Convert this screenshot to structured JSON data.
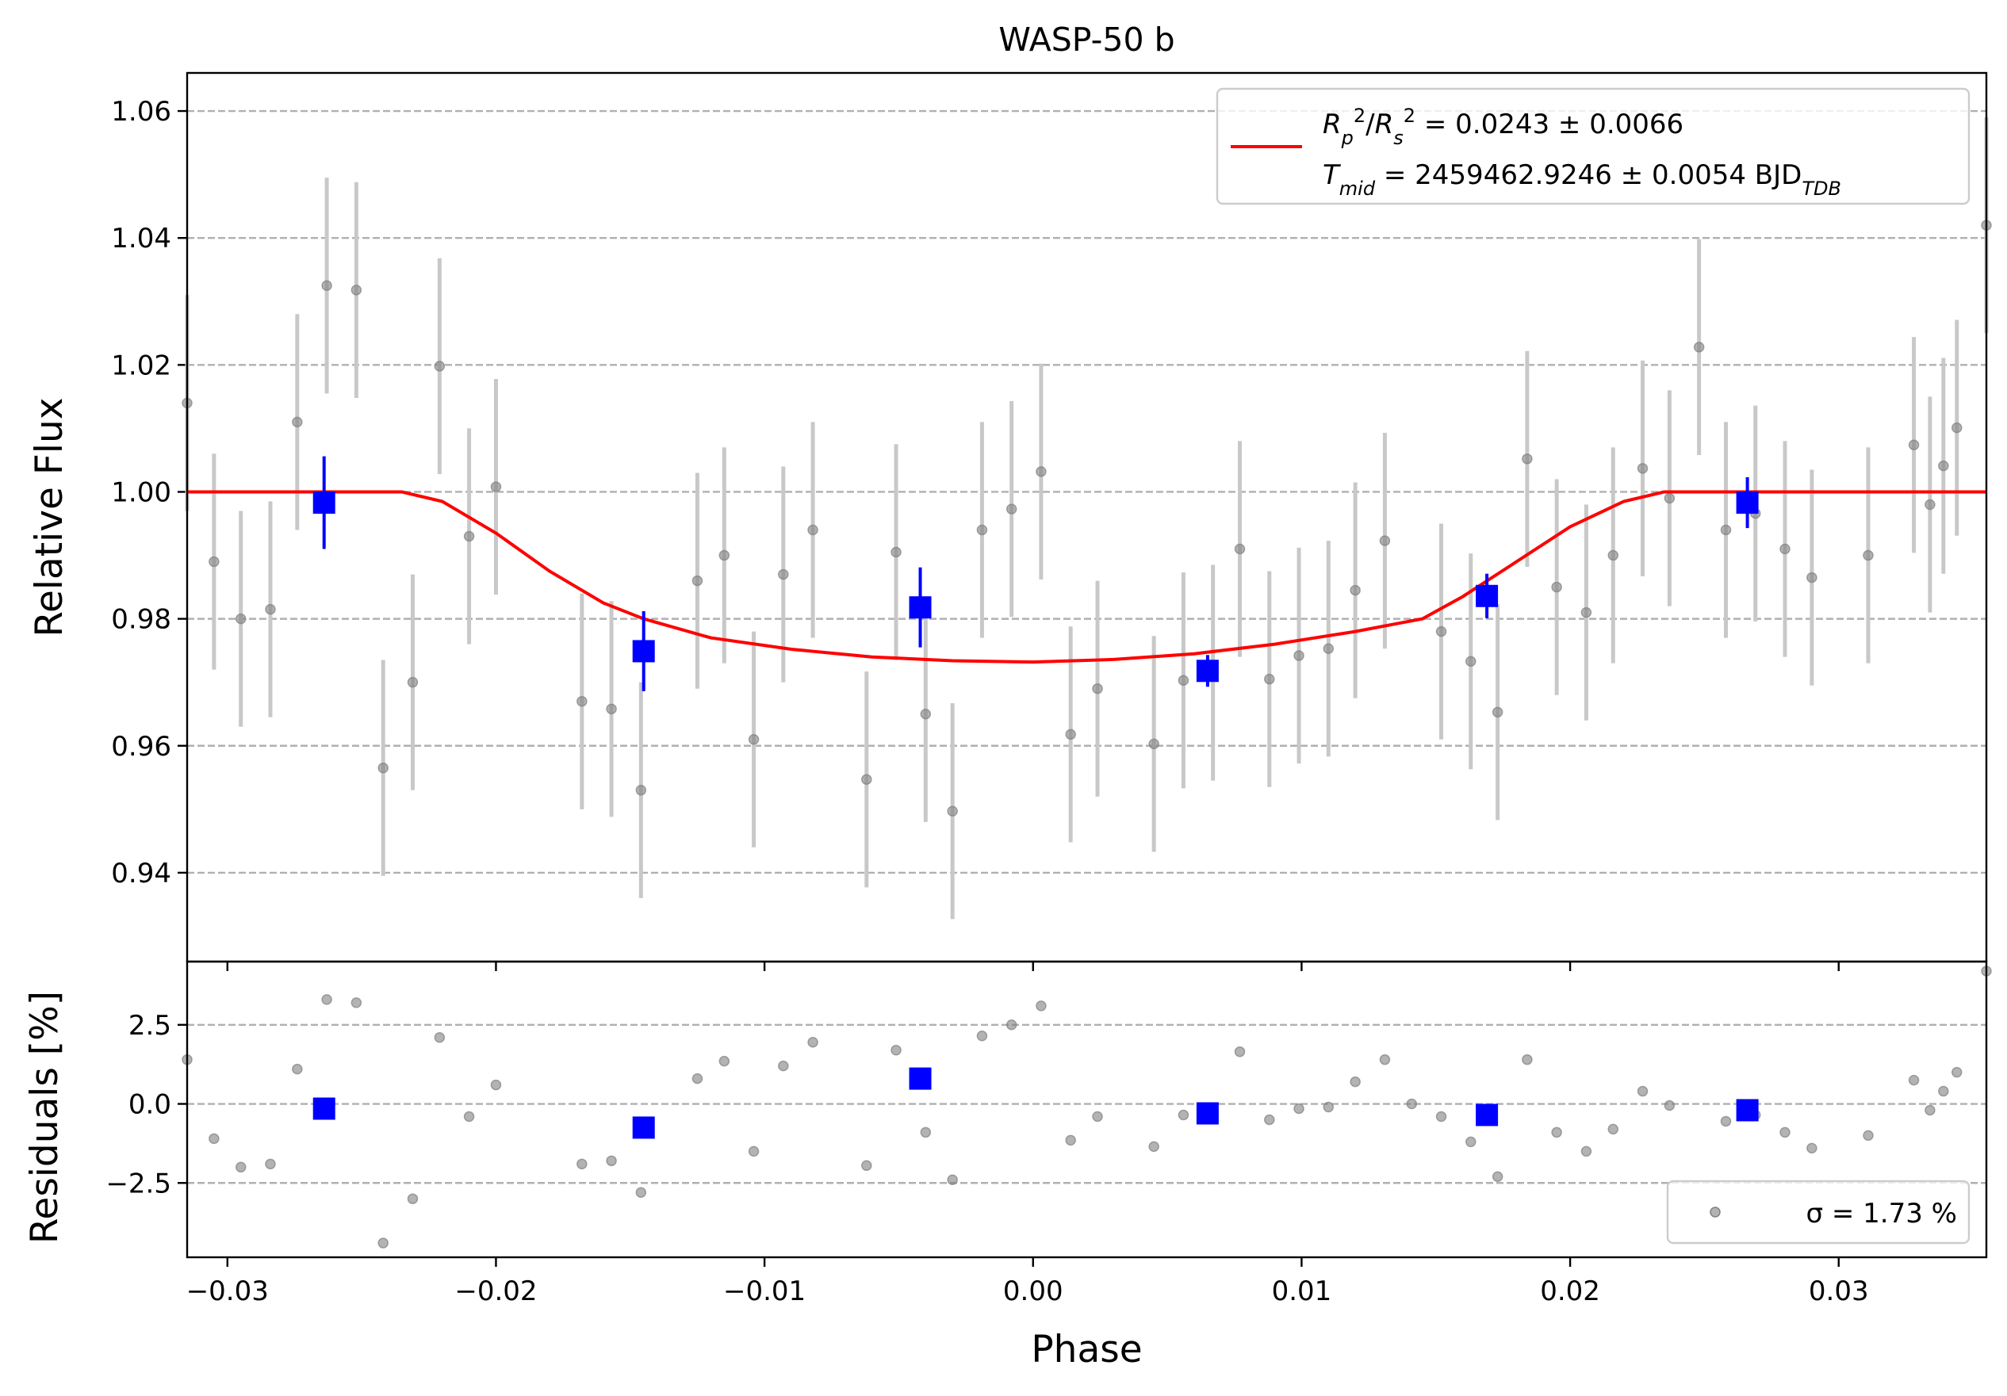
{
  "chart_data": [
    {
      "type": "scatter",
      "panel": "main",
      "title": "WASP-50 b",
      "xlabel": "",
      "ylabel": "Relative Flux",
      "xlim": [
        -0.0315,
        0.0355
      ],
      "ylim": [
        0.926,
        1.066
      ],
      "yticks": [
        0.94,
        0.96,
        0.98,
        1.0,
        1.02,
        1.04,
        1.06
      ],
      "ytick_labels": [
        "0.94",
        "0.96",
        "0.98",
        "1.00",
        "1.02",
        "1.04",
        "1.06"
      ],
      "grid": "horizontal dashed",
      "legend_position": "top-right",
      "legend": {
        "line_text_1": "R_p^2/R_s^2 = 0.0243 ± 0.0066",
        "line_text_2": "T_mid = 2459462.9246 ± 0.0054 BJD_TDB"
      },
      "colors": {
        "raw": "#808080",
        "binned": "#0000ff",
        "model": "#ff0000",
        "raw_errorbar": "#c8c8c8"
      },
      "series": [
        {
          "kind": "raw",
          "x": [
            -0.0315,
            -0.0305,
            -0.0295,
            -0.0284,
            -0.0274,
            -0.0263,
            -0.0252,
            -0.0242,
            -0.0231,
            -0.0221,
            -0.021,
            -0.02,
            -0.0168,
            -0.0157,
            -0.0146,
            -0.0125,
            -0.0115,
            -0.0104,
            -0.0093,
            -0.0082,
            -0.0062,
            -0.0051,
            -0.004,
            -0.003,
            -0.0019,
            -0.0008,
            0.0003,
            0.0014,
            0.0024,
            0.0045,
            0.0056,
            0.0067,
            0.0077,
            0.0088,
            0.0099,
            0.011,
            0.012,
            0.0131,
            0.0152,
            0.0163,
            0.0173,
            0.0184,
            0.0195,
            0.0206,
            0.0216,
            0.0227,
            0.0237,
            0.0248,
            0.0258,
            0.0269,
            0.028,
            0.029,
            0.0311,
            0.0328,
            0.0334,
            0.0339,
            0.0344,
            0.0355
          ],
          "y": [
            1.014,
            0.989,
            0.98,
            0.9815,
            1.011,
            1.0325,
            1.0318,
            0.9565,
            0.97,
            1.0198,
            0.993,
            1.0008,
            0.967,
            0.9658,
            0.953,
            0.986,
            0.99,
            0.961,
            0.987,
            0.994,
            0.9547,
            0.9905,
            0.965,
            0.9497,
            0.994,
            0.9973,
            1.0032,
            0.9618,
            0.969,
            0.9603,
            0.9703,
            0.9715,
            0.991,
            0.9705,
            0.9742,
            0.9753,
            0.9845,
            0.9923,
            0.978,
            0.9733,
            0.9653,
            1.0052,
            0.985,
            0.981,
            0.99,
            1.0037,
            0.999,
            1.0228,
            0.994,
            0.9966,
            0.991,
            0.9865,
            0.99,
            1.0074,
            0.998,
            1.0041,
            1.0101,
            1.042
          ],
          "yerr": 0.017
        },
        {
          "kind": "binned",
          "x": [
            -0.0264,
            -0.0145,
            -0.0042,
            0.0065,
            0.0169,
            0.0266
          ],
          "y": [
            0.9983,
            0.9749,
            0.9818,
            0.9718,
            0.9836,
            0.9983
          ],
          "yerr": [
            0.0073,
            0.0063,
            0.0063,
            0.0025,
            0.0035,
            0.004
          ]
        },
        {
          "kind": "model",
          "x": [
            -0.0315,
            -0.0235,
            -0.022,
            -0.02,
            -0.018,
            -0.016,
            -0.0145,
            -0.012,
            -0.009,
            -0.006,
            -0.003,
            0.0,
            0.003,
            0.006,
            0.009,
            0.012,
            0.0145,
            0.016,
            0.018,
            0.02,
            0.022,
            0.0235,
            0.0355
          ],
          "y": [
            1.0,
            1.0,
            0.9985,
            0.9935,
            0.9875,
            0.9825,
            0.98,
            0.977,
            0.9752,
            0.974,
            0.9734,
            0.9732,
            0.9736,
            0.9745,
            0.976,
            0.978,
            0.98,
            0.9835,
            0.989,
            0.9945,
            0.9985,
            1.0,
            1.0
          ]
        }
      ]
    },
    {
      "type": "scatter",
      "panel": "residuals",
      "xlabel": "Phase",
      "ylabel": "Residuals [%]",
      "xlim": [
        -0.0315,
        0.0355
      ],
      "ylim": [
        -4.85,
        4.5
      ],
      "xticks": [
        -0.03,
        -0.02,
        -0.01,
        0.0,
        0.01,
        0.02,
        0.03
      ],
      "xtick_labels": [
        "−0.03",
        "−0.02",
        "−0.01",
        "0.00",
        "0.01",
        "0.02",
        "0.03"
      ],
      "yticks": [
        -2.5,
        0.0,
        2.5
      ],
      "ytick_labels": [
        "−2.5",
        "0.0",
        "2.5"
      ],
      "grid": "horizontal dashed",
      "legend_position": "bottom-right",
      "legend": {
        "text": "σ = 1.73 %"
      },
      "series": [
        {
          "kind": "raw",
          "x": [
            -0.0315,
            -0.0305,
            -0.0295,
            -0.0284,
            -0.0274,
            -0.0263,
            -0.0252,
            -0.0242,
            -0.0231,
            -0.0221,
            -0.021,
            -0.02,
            -0.0168,
            -0.0157,
            -0.0146,
            -0.0125,
            -0.0115,
            -0.0104,
            -0.0093,
            -0.0082,
            -0.0062,
            -0.0051,
            -0.004,
            -0.003,
            -0.0019,
            -0.0008,
            0.0003,
            0.0014,
            0.0024,
            0.0045,
            0.0056,
            0.0067,
            0.0077,
            0.0088,
            0.0099,
            0.011,
            0.012,
            0.0131,
            0.0141,
            0.0152,
            0.0163,
            0.0173,
            0.0184,
            0.0195,
            0.0206,
            0.0216,
            0.0227,
            0.0237,
            0.0258,
            0.0269,
            0.028,
            0.029,
            0.0311,
            0.0328,
            0.0334,
            0.0339,
            0.0344,
            0.0355
          ],
          "y": [
            1.4,
            -1.1,
            -2.0,
            -1.9,
            1.1,
            3.3,
            3.2,
            -4.4,
            -3.0,
            2.1,
            -0.4,
            0.6,
            -1.9,
            -1.8,
            -2.8,
            0.8,
            1.35,
            -1.5,
            1.2,
            1.95,
            -1.95,
            1.7,
            -0.9,
            -2.4,
            2.15,
            2.5,
            3.1,
            -1.15,
            -0.4,
            -1.35,
            -0.35,
            -0.3,
            1.65,
            -0.5,
            -0.15,
            -0.1,
            0.7,
            1.4,
            0.0,
            -0.4,
            -1.2,
            -2.3,
            1.4,
            -0.9,
            -1.5,
            -0.8,
            0.4,
            -0.05,
            -0.55,
            -0.35,
            -0.9,
            -1.4,
            -1.0,
            0.75,
            -0.2,
            0.4,
            1.0,
            4.2
          ]
        },
        {
          "kind": "binned",
          "x": [
            -0.0264,
            -0.0145,
            -0.0042,
            0.0065,
            0.0169,
            0.0266
          ],
          "y": [
            -0.15,
            -0.75,
            0.8,
            -0.3,
            -0.35,
            -0.2
          ]
        }
      ]
    }
  ]
}
